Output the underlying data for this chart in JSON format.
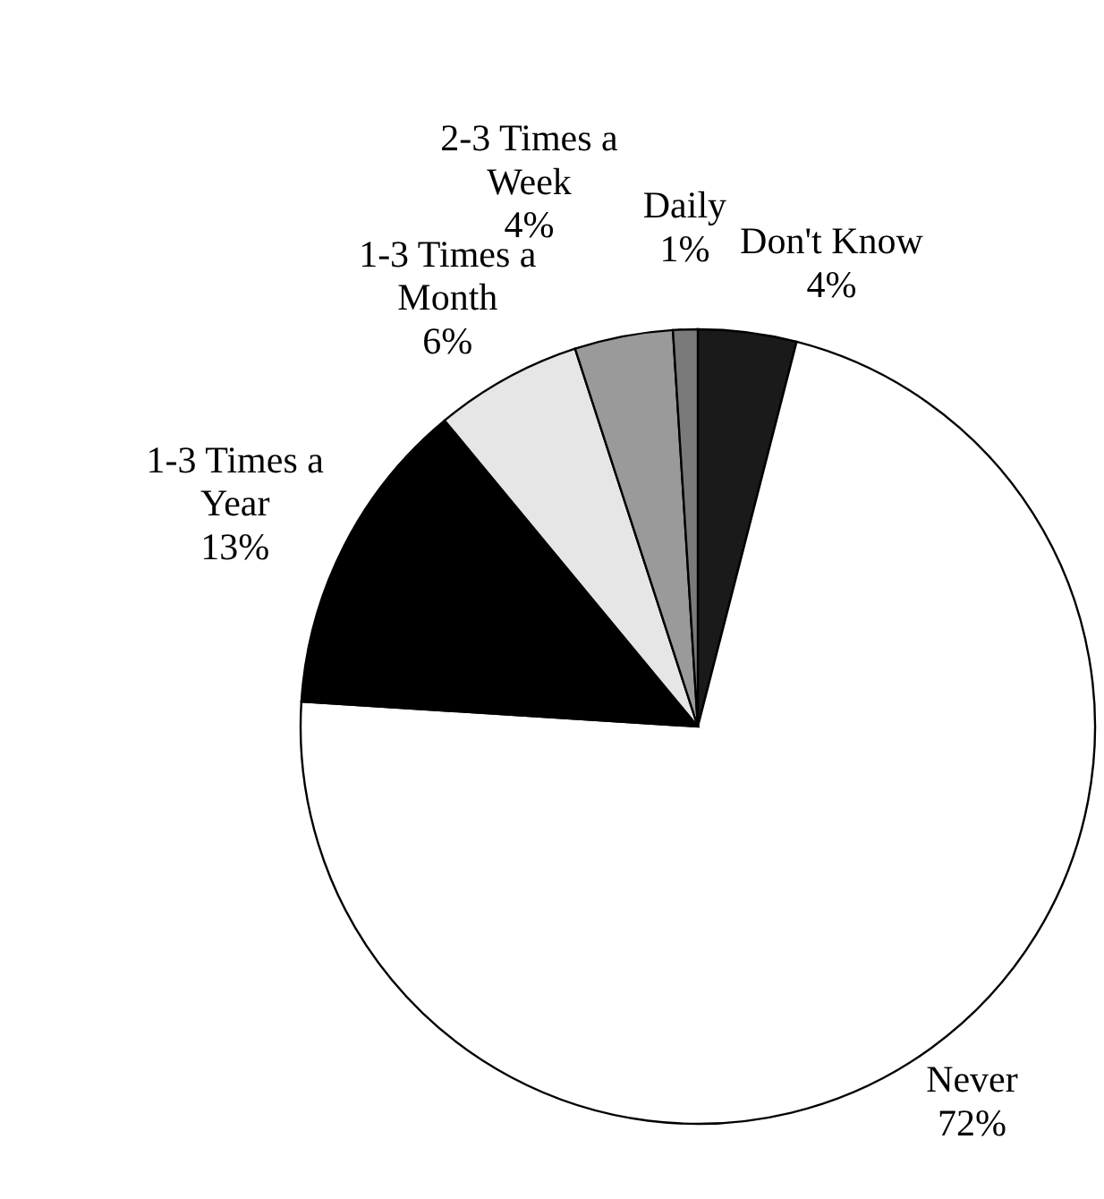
{
  "chart_data": {
    "type": "pie",
    "categories": [
      "Don't Know",
      "Never",
      "1-3 Times a Year",
      "1-3 Times a Month",
      "2-3 Times a Week",
      "Daily"
    ],
    "values": [
      4,
      72,
      13,
      6,
      4,
      1
    ],
    "value_labels": [
      "4%",
      "72%",
      "13%",
      "6%",
      "4%",
      "1%"
    ],
    "colors": [
      "#1a1a1a",
      "#ffffff",
      "#000000",
      "#e6e6e6",
      "#9a9a9a",
      "#7a7a7a"
    ]
  }
}
